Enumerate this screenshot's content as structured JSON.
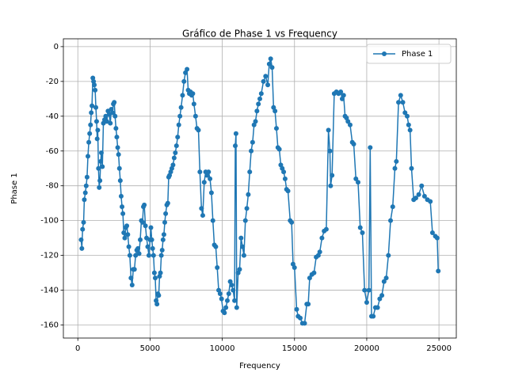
{
  "chart_data": {
    "type": "line",
    "title": "Gráfico de Phase 1 vs Frequency",
    "x_label": "Frequency",
    "y_label": "Phase 1",
    "x": [
      230,
      280,
      330,
      400,
      450,
      520,
      580,
      640,
      700,
      760,
      820,
      880,
      930,
      980,
      1040,
      1090,
      1140,
      1200,
      1250,
      1300,
      1340,
      1380,
      1430,
      1480,
      1530,
      1580,
      1630,
      1700,
      1770,
      1850,
      1930,
      2010,
      2090,
      2170,
      2250,
      2320,
      2400,
      2460,
      2520,
      2580,
      2640,
      2700,
      2760,
      2820,
      2880,
      2940,
      3000,
      3060,
      3120,
      3180,
      3250,
      3320,
      3390,
      3460,
      3530,
      3600,
      3680,
      3760,
      3840,
      3920,
      4000,
      4080,
      4160,
      4240,
      4320,
      4400,
      4480,
      4540,
      4600,
      4680,
      4760,
      4840,
      4920,
      5000,
      5060,
      5120,
      5180,
      5240,
      5300,
      5360,
      5420,
      5480,
      5540,
      5600,
      5660,
      5720,
      5780,
      5840,
      5900,
      5960,
      6020,
      6080,
      6160,
      6230,
      6290,
      6350,
      6430,
      6510,
      6590,
      6670,
      6750,
      6830,
      6910,
      6990,
      7070,
      7150,
      7250,
      7350,
      7450,
      7560,
      7640,
      7720,
      7800,
      7880,
      7960,
      8040,
      8150,
      8250,
      8350,
      8450,
      8560,
      8650,
      8750,
      8850,
      8950,
      9050,
      9150,
      9250,
      9350,
      9450,
      9550,
      9650,
      9750,
      9850,
      9950,
      10050,
      10150,
      10250,
      10350,
      10450,
      10550,
      10650,
      10750,
      10850,
      10900,
      10950,
      11000,
      11100,
      11200,
      11300,
      11400,
      11500,
      11600,
      11700,
      11800,
      11900,
      12000,
      12100,
      12200,
      12300,
      12400,
      12500,
      12600,
      12700,
      12850,
      13000,
      13150,
      13250,
      13350,
      13450,
      13550,
      13650,
      13750,
      13850,
      13950,
      14050,
      14150,
      14250,
      14350,
      14450,
      14550,
      14700,
      14800,
      14900,
      15000,
      15150,
      15250,
      15400,
      15550,
      15700,
      15850,
      15950,
      16050,
      16200,
      16350,
      16500,
      16650,
      16750,
      16900,
      17050,
      17200,
      17350,
      17450,
      17500,
      17600,
      17750,
      17900,
      18050,
      18200,
      18300,
      18400,
      18500,
      18600,
      18700,
      18850,
      19000,
      19100,
      19250,
      19400,
      19550,
      19700,
      19850,
      20000,
      20150,
      20240,
      20330,
      20450,
      20600,
      20750,
      20900,
      21050,
      21200,
      21350,
      21500,
      21650,
      21800,
      21950,
      22050,
      22200,
      22350,
      22500,
      22650,
      22800,
      22900,
      23000,
      23100,
      23250,
      23400,
      23600,
      23800,
      24000,
      24200,
      24400,
      24550,
      24750,
      24880,
      24950
    ],
    "series": [
      {
        "name": "Phase 1",
        "color": "#1f77b4",
        "values": [
          -111,
          -116,
          -105,
          -101,
          -88,
          -84,
          -80,
          -75,
          -63,
          -55,
          -50,
          -45,
          -38,
          -34,
          -18,
          -20,
          -22,
          -25,
          -35,
          -43,
          -53,
          -48,
          -70,
          -81,
          -77,
          -66,
          -61,
          -69,
          -44,
          -42,
          -40,
          -43,
          -37,
          -39,
          -44,
          -36,
          -38,
          -33,
          -32,
          -40,
          -47,
          -52,
          -58,
          -62,
          -70,
          -77,
          -86,
          -92,
          -96,
          -107,
          -110,
          -104,
          -103,
          -108,
          -115,
          -120,
          -133,
          -137,
          -128,
          -128,
          -120,
          -117,
          -116,
          -119,
          -111,
          -100,
          -101,
          -92,
          -91,
          -103,
          -110,
          -115,
          -120,
          -111,
          -104,
          -111,
          -116,
          -120,
          -130,
          -133,
          -146,
          -148,
          -142,
          -143,
          -132,
          -130,
          -120,
          -117,
          -111,
          -108,
          -101,
          -96,
          -91,
          -90,
          -75,
          -74,
          -72,
          -70,
          -68,
          -64,
          -61,
          -57,
          -52,
          -45,
          -40,
          -35,
          -28,
          -20,
          -15,
          -13,
          -25,
          -27,
          -26,
          -28,
          -27,
          -33,
          -40,
          -47,
          -48,
          -72,
          -93,
          -97,
          -78,
          -72,
          -74,
          -72,
          -76,
          -84,
          -100,
          -114,
          -115,
          -127,
          -140,
          -142,
          -145,
          -152,
          -153,
          -150,
          -146,
          -142,
          -135,
          -137,
          -140,
          -146,
          -57,
          -50,
          -150,
          -130,
          -128,
          -110,
          -115,
          -120,
          -100,
          -93,
          -85,
          -72,
          -60,
          -55,
          -45,
          -43,
          -37,
          -33,
          -30,
          -27,
          -20,
          -17,
          -22,
          -10,
          -7,
          -12,
          -35,
          -37,
          -47,
          -58,
          -59,
          -68,
          -70,
          -72,
          -76,
          -82,
          -83,
          -100,
          -101,
          -125,
          -127,
          -151,
          -155,
          -156,
          -159,
          -159,
          -148,
          -148,
          -133,
          -131,
          -130,
          -121,
          -120,
          -118,
          -110,
          -106,
          -105,
          -48,
          -60,
          -80,
          -74,
          -27,
          -26,
          -27,
          -26,
          -30,
          -28,
          -40,
          -41,
          -43,
          -45,
          -55,
          -56,
          -76,
          -78,
          -104,
          -107,
          -140,
          -147,
          -140,
          -58,
          -155,
          -155,
          -150,
          -150,
          -145,
          -143,
          -135,
          -133,
          -120,
          -100,
          -92,
          -70,
          -66,
          -32,
          -28,
          -32,
          -38,
          -40,
          -45,
          -48,
          -70,
          -88,
          -87,
          -85,
          -80,
          -86,
          -88,
          -89,
          -107,
          -109,
          -110,
          -129
        ]
      }
    ],
    "xlim": [
      -1000,
      26200
    ],
    "ylim": [
      -167.5,
      4.5
    ],
    "xticks": [
      0,
      5000,
      10000,
      15000,
      20000,
      25000
    ],
    "yticks": [
      0,
      -20,
      -40,
      -60,
      -80,
      -100,
      -120,
      -140,
      -160
    ],
    "grid": true,
    "legend": "upper right",
    "marker": "circle"
  }
}
